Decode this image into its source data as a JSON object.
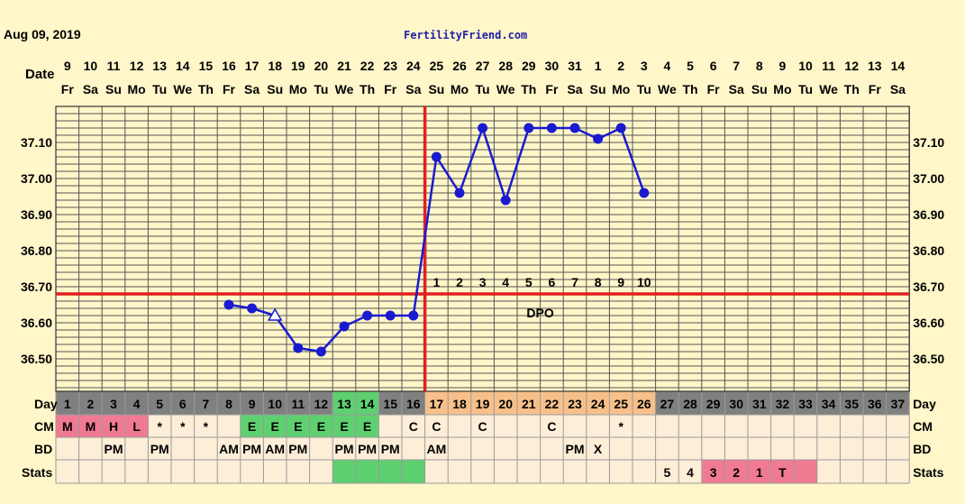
{
  "header": {
    "date": "Aug 09, 2019",
    "site": "FertilityFriend.com"
  },
  "row_labels": {
    "date": "Date",
    "day": "Day",
    "cm": "CM",
    "bd": "BD",
    "stats": "Stats"
  },
  "dpo_label": "DPO",
  "colors": {
    "background": "#fff6c9",
    "grid": "#555555",
    "coverline": "#e02020",
    "temp_line": "#1a1ad0",
    "menses": "#f07a92",
    "fertile_green": "#5ed070",
    "luteal_orange": "#f7c08a",
    "row_cream": "#fdeed8",
    "day_gray": "#c8c8c8"
  },
  "chart_data": {
    "type": "line",
    "title": "",
    "xlabel": "",
    "ylabel": "",
    "ylim": [
      36.41,
      37.2
    ],
    "y_ticks": [
      "37.10",
      "37.00",
      "36.90",
      "36.80",
      "36.70",
      "36.60",
      "36.50"
    ],
    "coverline": 36.68,
    "ovulation_cycle_day": 16,
    "cycle_days": [
      1,
      2,
      3,
      4,
      5,
      6,
      7,
      8,
      9,
      10,
      11,
      12,
      13,
      14,
      15,
      16,
      17,
      18,
      19,
      20,
      21,
      22,
      23,
      24,
      25,
      26,
      27,
      28,
      29,
      30,
      31,
      32,
      33,
      34,
      35,
      36,
      37
    ],
    "dates": [
      "9",
      "10",
      "11",
      "12",
      "13",
      "14",
      "15",
      "16",
      "17",
      "18",
      "19",
      "20",
      "21",
      "22",
      "23",
      "24",
      "25",
      "26",
      "27",
      "28",
      "29",
      "30",
      "31",
      "1",
      "2",
      "3",
      "4",
      "5",
      "6",
      "7",
      "8",
      "9",
      "10",
      "11",
      "12",
      "13",
      "14"
    ],
    "weekdays": [
      "Fr",
      "Sa",
      "Su",
      "Mo",
      "Tu",
      "We",
      "Th",
      "Fr",
      "Sa",
      "Su",
      "Mo",
      "Tu",
      "We",
      "Th",
      "Fr",
      "Sa",
      "Su",
      "Mo",
      "Tu",
      "We",
      "Th",
      "Fr",
      "Sa",
      "Su",
      "Mo",
      "Tu",
      "We",
      "Th",
      "Fr",
      "Sa",
      "Su",
      "Mo",
      "Tu",
      "We",
      "Th",
      "Fr",
      "Sa"
    ],
    "series": [
      {
        "points": [
          {
            "day": 8,
            "temp": 36.65
          },
          {
            "day": 9,
            "temp": 36.64
          },
          {
            "day": 10,
            "temp": 36.62,
            "marker": "triangle"
          },
          {
            "day": 11,
            "temp": 36.53
          },
          {
            "day": 12,
            "temp": 36.52
          },
          {
            "day": 13,
            "temp": 36.59
          },
          {
            "day": 14,
            "temp": 36.62
          },
          {
            "day": 15,
            "temp": 36.62
          },
          {
            "day": 16,
            "temp": 36.62
          },
          {
            "day": 17,
            "temp": 37.06
          },
          {
            "day": 18,
            "temp": 36.96
          },
          {
            "day": 19,
            "temp": 37.14
          },
          {
            "day": 20,
            "temp": 36.94
          },
          {
            "day": 21,
            "temp": 37.14
          },
          {
            "day": 22,
            "temp": 37.14
          },
          {
            "day": 23,
            "temp": 37.14
          },
          {
            "day": 24,
            "temp": 37.11
          },
          {
            "day": 25,
            "temp": 37.14
          },
          {
            "day": 26,
            "temp": 36.96
          }
        ]
      }
    ],
    "dpo": [
      {
        "day": 17,
        "label": "1"
      },
      {
        "day": 18,
        "label": "2"
      },
      {
        "day": 19,
        "label": "3"
      },
      {
        "day": 20,
        "label": "4"
      },
      {
        "day": 21,
        "label": "5"
      },
      {
        "day": 22,
        "label": "6"
      },
      {
        "day": 23,
        "label": "7"
      },
      {
        "day": 24,
        "label": "8"
      },
      {
        "day": 25,
        "label": "9"
      },
      {
        "day": 26,
        "label": "10"
      }
    ],
    "cm": [
      {
        "day": 1,
        "label": "M",
        "fill": "menses"
      },
      {
        "day": 2,
        "label": "M",
        "fill": "menses"
      },
      {
        "day": 3,
        "label": "H",
        "fill": "menses"
      },
      {
        "day": 4,
        "label": "L",
        "fill": "menses"
      },
      {
        "day": 5,
        "label": "*"
      },
      {
        "day": 6,
        "label": "*"
      },
      {
        "day": 7,
        "label": "*"
      },
      {
        "day": 9,
        "label": "E",
        "fill": "fertile_green"
      },
      {
        "day": 10,
        "label": "E",
        "fill": "fertile_green"
      },
      {
        "day": 11,
        "label": "E",
        "fill": "fertile_green"
      },
      {
        "day": 12,
        "label": "E",
        "fill": "fertile_green"
      },
      {
        "day": 13,
        "label": "E",
        "fill": "fertile_green"
      },
      {
        "day": 14,
        "label": "E",
        "fill": "fertile_green"
      },
      {
        "day": 16,
        "label": "C"
      },
      {
        "day": 17,
        "label": "C"
      },
      {
        "day": 19,
        "label": "C"
      },
      {
        "day": 22,
        "label": "C"
      },
      {
        "day": 25,
        "label": "*"
      }
    ],
    "bd": [
      {
        "day": 3,
        "label": "PM"
      },
      {
        "day": 5,
        "label": "PM"
      },
      {
        "day": 8,
        "label": "AM"
      },
      {
        "day": 9,
        "label": "PM"
      },
      {
        "day": 10,
        "label": "AM"
      },
      {
        "day": 11,
        "label": "PM"
      },
      {
        "day": 13,
        "label": "PM"
      },
      {
        "day": 14,
        "label": "PM"
      },
      {
        "day": 15,
        "label": "PM"
      },
      {
        "day": 17,
        "label": "AM"
      },
      {
        "day": 23,
        "label": "PM"
      },
      {
        "day": 24,
        "label": "X"
      }
    ],
    "stats": [
      {
        "day": 13,
        "label": "",
        "fill": "fertile_green"
      },
      {
        "day": 14,
        "label": "",
        "fill": "fertile_green"
      },
      {
        "day": 15,
        "label": "",
        "fill": "fertile_green"
      },
      {
        "day": 16,
        "label": "",
        "fill": "fertile_green"
      },
      {
        "day": 27,
        "label": "5"
      },
      {
        "day": 28,
        "label": "4"
      },
      {
        "day": 29,
        "label": "3",
        "fill": "menses"
      },
      {
        "day": 30,
        "label": "2",
        "fill": "menses"
      },
      {
        "day": 31,
        "label": "1",
        "fill": "menses"
      },
      {
        "day": 32,
        "label": "T",
        "fill": "menses"
      },
      {
        "day": 33,
        "label": "",
        "fill": "menses"
      }
    ],
    "day_cell_fills": {
      "gray": [
        1,
        2,
        3,
        4,
        5,
        6,
        7,
        8,
        9,
        10,
        11,
        12,
        15,
        16,
        27,
        28,
        29,
        30,
        31,
        32,
        33,
        34,
        35,
        36,
        37
      ],
      "fertile_green": [
        13,
        14
      ],
      "luteal_orange": [
        17,
        18,
        19,
        20,
        21,
        22,
        23,
        24,
        25,
        26
      ]
    }
  }
}
